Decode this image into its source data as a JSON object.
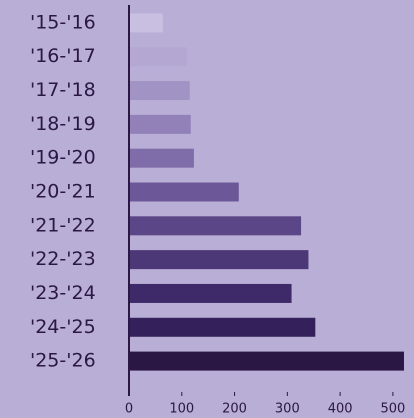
{
  "chart_data": {
    "type": "bar",
    "orientation": "horizontal",
    "categories": [
      "'15-'16",
      "'16-'17",
      "'17-'18",
      "'18-'19",
      "'19-'20",
      "'20-'21",
      "'21-'22",
      "'22-'23",
      "'23-'24",
      "'24-'25",
      "'25-'26"
    ],
    "values": [
      64,
      109,
      115,
      117,
      123,
      208,
      326,
      340,
      308,
      353,
      521
    ],
    "colors": [
      "#c9c0e1",
      "#b4a8d3",
      "#a193c4",
      "#9181b8",
      "#7f6daa",
      "#6c5898",
      "#5b4687",
      "#4c3777",
      "#3f2a69",
      "#34205b",
      "#2a1744"
    ],
    "xlim": [
      0,
      540
    ],
    "xticks": [
      0,
      100,
      200,
      300,
      400,
      500
    ],
    "grid": false
  }
}
